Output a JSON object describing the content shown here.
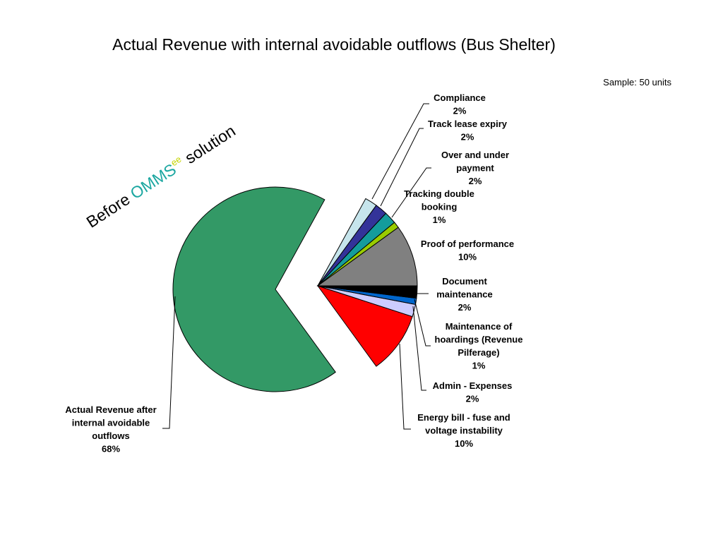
{
  "title": "Actual Revenue with internal avoidable outflows  (Bus Shelter)",
  "sample_note": "Sample: 50 units",
  "tagline": {
    "before": "Before ",
    "brand": "OMMS",
    "brand_sup": "ee",
    "after": " solution",
    "brand_color": "#1aa6a0",
    "sup_color": "#c5d400"
  },
  "chart_data": {
    "type": "pie",
    "start": "3 o'clock, counter-clockwise",
    "exploded_slice": "Actual Revenue after internal avoidable outflows",
    "slices": [
      {
        "label": "Proof of performance",
        "value": 10,
        "pct": "10%",
        "color": "#808080"
      },
      {
        "label": "Tracking double booking",
        "value": 1,
        "pct": "1%",
        "color": "#99cc00"
      },
      {
        "label": "Over and under payment",
        "value": 2,
        "pct": "2%",
        "color": "#149c9c"
      },
      {
        "label": "Track lease expiry",
        "value": 2,
        "pct": "2%",
        "color": "#333399"
      },
      {
        "label": "Compliance",
        "value": 2,
        "pct": "2%",
        "color": "#c6e5ec"
      },
      {
        "label": "Actual Revenue after internal avoidable outflows",
        "value": 68,
        "pct": "68%",
        "color": "#339966"
      },
      {
        "label": "Energy bill - fuse and voltage instability",
        "value": 10,
        "pct": "10%",
        "color": "#ff0000"
      },
      {
        "label": "Admin - Expenses",
        "value": 2,
        "pct": "2%",
        "color": "#ccccff"
      },
      {
        "label": "Maintenance of hoardings (Revenue Pilferage)",
        "value": 1,
        "pct": "1%",
        "color": "#0066cc"
      },
      {
        "label": "Document maintenance",
        "value": 2,
        "pct": "2%",
        "color": "#000000"
      }
    ],
    "labels": [
      {
        "lines": [
          "Compliance",
          "2%"
        ]
      },
      {
        "lines": [
          "Track lease expiry",
          "2%"
        ]
      },
      {
        "lines": [
          "Over and under",
          "payment",
          "2%"
        ]
      },
      {
        "lines": [
          "Tracking double",
          "booking",
          "1%"
        ]
      },
      {
        "lines": [
          "Proof of performance",
          "10%"
        ]
      },
      {
        "lines": [
          "Document",
          "maintenance",
          "2%"
        ]
      },
      {
        "lines": [
          "Maintenance of",
          "hoardings (Revenue",
          "Pilferage)",
          "1%"
        ]
      },
      {
        "lines": [
          "Admin - Expenses",
          "2%"
        ]
      },
      {
        "lines": [
          "Energy bill - fuse and",
          "voltage instability",
          "10%"
        ]
      },
      {
        "lines": [
          "Actual Revenue after",
          "internal avoidable",
          "outflows",
          "68%"
        ]
      }
    ]
  }
}
